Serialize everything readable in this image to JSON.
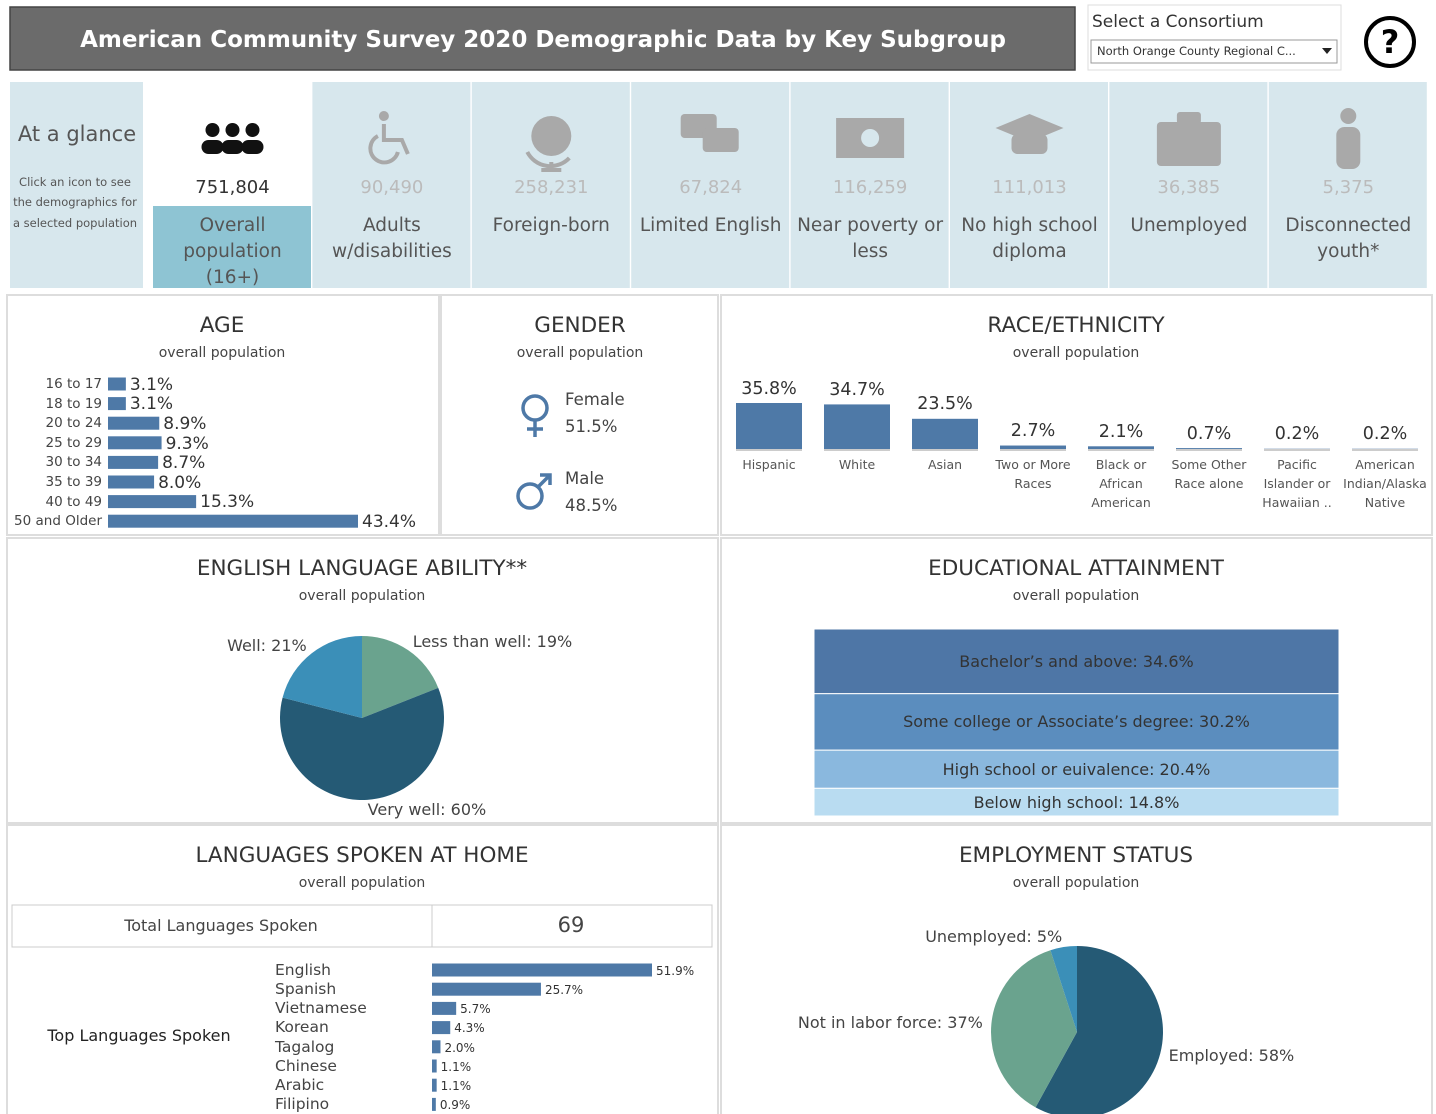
{
  "header": {
    "title": "American Community Survey 2020 Demographic Data by Key Subgroup",
    "consortium_label": "Select a Consortium",
    "consortium_value": "North Orange County Regional C...",
    "help_icon": "?"
  },
  "glance": {
    "title": "At a glance",
    "note": "Click an icon to see the demographics for a selected population",
    "tiles": [
      {
        "value": "751,804",
        "label": "Overall population (16+)",
        "selected": true
      },
      {
        "value": "90,490",
        "label": "Adults w/disabilities",
        "selected": false
      },
      {
        "value": "258,231",
        "label": "Foreign-born",
        "selected": false
      },
      {
        "value": "67,824",
        "label": "Limited English",
        "selected": false
      },
      {
        "value": "116,259",
        "label": "Near poverty or less",
        "selected": false
      },
      {
        "value": "111,013",
        "label": "No high school diploma",
        "selected": false
      },
      {
        "value": "36,385",
        "label": "Unemployed",
        "selected": false
      },
      {
        "value": "5,375",
        "label": "Disconnected youth*",
        "selected": false
      }
    ]
  },
  "chart_data": [
    {
      "type": "bar",
      "orientation": "horizontal",
      "title": "AGE",
      "subtitle": "overall population",
      "categories": [
        "16 to 17",
        "18 to 19",
        "20 to 24",
        "25 to 29",
        "30 to 34",
        "35 to 39",
        "40 to 49",
        "50 and Older"
      ],
      "values": [
        3.1,
        3.1,
        8.9,
        9.3,
        8.7,
        8.0,
        15.3,
        43.4
      ],
      "value_labels": [
        "3.1%",
        "3.1%",
        "8.9%",
        "9.3%",
        "8.7%",
        "8.0%",
        "15.3%",
        "43.4%"
      ],
      "color": "#4e79a7"
    },
    {
      "type": "icon-list",
      "title": "GENDER",
      "subtitle": "overall population",
      "categories": [
        "Female",
        "Male"
      ],
      "values": [
        51.5,
        48.5
      ],
      "value_labels": [
        "51.5%",
        "48.5%"
      ],
      "color": "#4e79a7"
    },
    {
      "type": "bar",
      "orientation": "vertical",
      "title": "RACE/ETHNICITY",
      "subtitle": "overall population",
      "categories": [
        "Hispanic",
        "White",
        "Asian",
        "Two or More Races",
        "Black or African American",
        "Some Other Race alone",
        "Pacific Islander or Hawaiian ..",
        "American Indian/Alaska Native"
      ],
      "values": [
        35.8,
        34.7,
        23.5,
        2.7,
        2.1,
        0.7,
        0.2,
        0.2
      ],
      "value_labels": [
        "35.8%",
        "34.7%",
        "23.5%",
        "2.7%",
        "2.1%",
        "0.7%",
        "0.2%",
        "0.2%"
      ],
      "color": "#4e79a7"
    },
    {
      "type": "pie",
      "title": "ENGLISH LANGUAGE ABILITY**",
      "subtitle": "overall population",
      "values": [
        19,
        60,
        21
      ],
      "value_labels": [
        "Less than well: 19%",
        "Very well: 60%",
        "Well: 21%"
      ],
      "colors": [
        "#6aa38e",
        "#255a75",
        "#3b8fb8"
      ]
    },
    {
      "type": "stacked-bar",
      "title": "EDUCATIONAL ATTAINMENT",
      "subtitle": "overall population",
      "values": [
        34.6,
        30.2,
        20.4,
        14.8
      ],
      "value_labels": [
        "Bachelor’s and above: 34.6%",
        "Some college or Associate’s degree: 30.2%",
        "High school or euivalence: 20.4%",
        "Below high school: 14.8%"
      ],
      "colors": [
        "#4e76a6",
        "#5b8dbe",
        "#8ab8de",
        "#b9dcf1"
      ]
    },
    {
      "type": "bar",
      "orientation": "horizontal",
      "title": "LANGUAGES SPOKEN AT HOME",
      "subtitle": "overall population",
      "total_label": "Total Languages Spoken",
      "total": 69,
      "group_label": "Top Languages Spoken",
      "categories": [
        "English",
        "Spanish",
        "Vietnamese",
        "Korean",
        "Tagalog",
        "Chinese",
        "Arabic",
        "Filipino"
      ],
      "values": [
        51.9,
        25.7,
        5.7,
        4.3,
        2.0,
        1.1,
        1.1,
        0.9
      ],
      "value_labels": [
        "51.9%",
        "25.7%",
        "5.7%",
        "4.3%",
        "2.0%",
        "1.1%",
        "1.1%",
        "0.9%"
      ],
      "color": "#4e79a7"
    },
    {
      "type": "pie",
      "title": "EMPLOYMENT STATUS",
      "subtitle": "overall population",
      "values": [
        58,
        37,
        5
      ],
      "value_labels": [
        "Employed: 58%",
        "Not in labor force: 37%",
        "Unemployed: 5%"
      ],
      "colors": [
        "#255a75",
        "#6aa38e",
        "#3b8fb8"
      ]
    }
  ]
}
